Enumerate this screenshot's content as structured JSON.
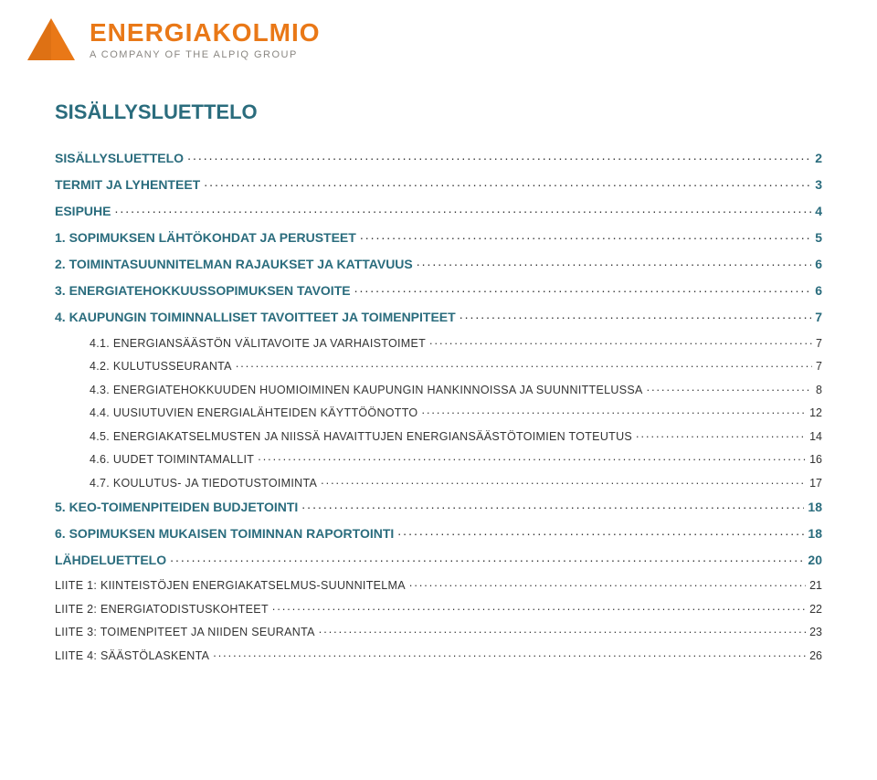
{
  "brand": {
    "name_color": "#e97817",
    "tagline_color": "#8a8782",
    "name": "ENERGIAKOLMIO",
    "tagline": "A COMPANY OF THE ALPIQ GROUP",
    "triangle_fill": "#e97817",
    "triangle_shadow": "#bf5a0c"
  },
  "title": {
    "text": "SISÄLLYSLUETTELO",
    "color": "#2a6c7d"
  },
  "toc_colors": {
    "lvl1": "#2a6c7d",
    "lvl2": "#333333"
  },
  "toc": [
    {
      "level": 1,
      "label": "SISÄLLYSLUETTELO",
      "page": "2"
    },
    {
      "level": 1,
      "label": "TERMIT JA LYHENTEET",
      "page": "3"
    },
    {
      "level": 1,
      "label": "ESIPUHE",
      "page": "4"
    },
    {
      "level": 1,
      "label": "1.  SOPIMUKSEN LÄHTÖKOHDAT JA PERUSTEET",
      "page": "5"
    },
    {
      "level": 1,
      "label": "2.  TOIMINTASUUNNITELMAN RAJAUKSET JA KATTAVUUS",
      "page": "6"
    },
    {
      "level": 1,
      "label": "3.  ENERGIATEHOKKUUSSOPIMUKSEN TAVOITE",
      "page": "6"
    },
    {
      "level": 1,
      "label": "4.  KAUPUNGIN TOIMINNALLISET TAVOITTEET JA TOIMENPITEET",
      "page": "7"
    },
    {
      "level": 2,
      "label": "4.1.  ENERGIANSÄÄSTÖN VÄLITAVOITE JA VARHAISTOIMET",
      "page": "7"
    },
    {
      "level": 2,
      "label": "4.2.  KULUTUSSEURANTA",
      "page": "7"
    },
    {
      "level": 2,
      "label": "4.3.  ENERGIATEHOKKUUDEN HUOMIOIMINEN KAUPUNGIN HANKINNOISSA JA SUUNNITTELUSSA",
      "page": "8"
    },
    {
      "level": 2,
      "label": "4.4.  UUSIUTUVIEN ENERGIALÄHTEIDEN KÄYTTÖÖNOTTO",
      "page": "12"
    },
    {
      "level": 2,
      "label": "4.5.  ENERGIAKATSELMUSTEN JA NIISSÄ HAVAITTUJEN ENERGIANSÄÄSTÖTOIMIEN TOTEUTUS",
      "page": "14"
    },
    {
      "level": 2,
      "label": "4.6.  UUDET TOIMINTAMALLIT",
      "page": "16"
    },
    {
      "level": 2,
      "label": "4.7.  KOULUTUS- JA TIEDOTUSTOIMINTA",
      "page": "17"
    },
    {
      "level": 1,
      "label": "5.  KEO-TOIMENPITEIDEN BUDJETOINTI",
      "page": "18"
    },
    {
      "level": 1,
      "label": "6.  SOPIMUKSEN MUKAISEN TOIMINNAN RAPORTOINTI",
      "page": "18"
    },
    {
      "level": 1,
      "label": "LÄHDELUETTELO",
      "page": "20"
    },
    {
      "level": 2,
      "label": "LIITE 1: KIINTEISTÖJEN ENERGIAKATSELMUS-SUUNNITELMA",
      "page": "21",
      "noindent": true
    },
    {
      "level": 2,
      "label": "LIITE 2: ENERGIATODISTUSKOHTEET",
      "page": "22",
      "noindent": true
    },
    {
      "level": 2,
      "label": "LIITE 3: TOIMENPITEET JA NIIDEN SEURANTA",
      "page": "23",
      "noindent": true
    },
    {
      "level": 2,
      "label": "LIITE 4: SÄÄSTÖLASKENTA",
      "page": "26",
      "noindent": true
    }
  ]
}
